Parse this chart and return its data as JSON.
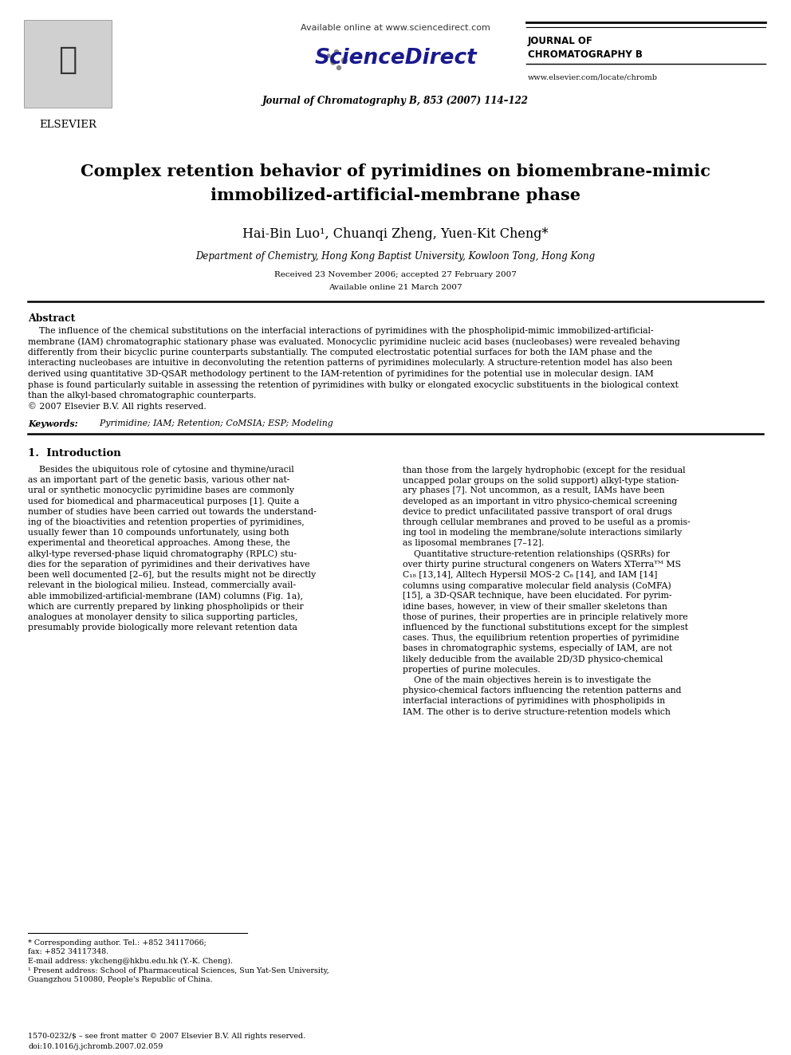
{
  "bg_color": "#ffffff",
  "header_available_online": "Available online at www.sciencedirect.com",
  "header_journal_info": "Journal of Chromatography B, 853 (2007) 114–122",
  "header_right_line1": "JOURNAL OF",
  "header_right_line2": "CHROMATOGRAPHY B",
  "header_url": "www.elsevier.com/locate/chromb",
  "elsevier_text": "ELSEVIER",
  "title_line1": "Complex retention behavior of pyrimidines on biomembrane-mimic",
  "title_line2": "immobilized-artificial-membrane phase",
  "authors_line": "Hai-Bin Luo¹, Chuanqi Zheng, Yuen-Kit Cheng*",
  "affiliation": "Department of Chemistry, Hong Kong Baptist University, Kowloon Tong, Hong Kong",
  "received": "Received 23 November 2006; accepted 27 February 2007",
  "available_online_paper": "Available online 21 March 2007",
  "abstract_title": "Abstract",
  "abstract_lines": [
    "    The influence of the chemical substitutions on the interfacial interactions of pyrimidines with the phospholipid-mimic immobilized-artificial-",
    "membrane (IAM) chromatographic stationary phase was evaluated. Monocyclic pyrimidine nucleic acid bases (nucleobases) were revealed behaving",
    "differently from their bicyclic purine counterparts substantially. The computed electrostatic potential surfaces for both the IAM phase and the",
    "interacting nucleobases are intuitive in deconvoluting the retention patterns of pyrimidines molecularly. A structure-retention model has also been",
    "derived using quantitative 3D-QSAR methodology pertinent to the IAM-retention of pyrimidines for the potential use in molecular design. IAM",
    "phase is found particularly suitable in assessing the retention of pyrimidines with bulky or elongated exocyclic substituents in the biological context",
    "than the alkyl-based chromatographic counterparts.",
    "© 2007 Elsevier B.V. All rights reserved."
  ],
  "keywords_label": "Keywords:",
  "keywords_text": "  Pyrimidine; IAM; Retention; CoMSIA; ESP; Modeling",
  "section1_title": "1.  Introduction",
  "col1_lines": [
    "    Besides the ubiquitous role of cytosine and thymine/uracil",
    "as an important part of the genetic basis, various other nat-",
    "ural or synthetic monocyclic pyrimidine bases are commonly",
    "used for biomedical and pharmaceutical purposes [1]. Quite a",
    "number of studies have been carried out towards the understand-",
    "ing of the bioactivities and retention properties of pyrimidines,",
    "usually fewer than 10 compounds unfortunately, using both",
    "experimental and theoretical approaches. Among these, the",
    "alkyl-type reversed-phase liquid chromatography (RPLC) stu-",
    "dies for the separation of pyrimidines and their derivatives have",
    "been well documented [2–6], but the results might not be directly",
    "relevant in the biological milieu. Instead, commercially avail-",
    "able immobilized-artificial-membrane (IAM) columns (Fig. 1a),",
    "which are currently prepared by linking phospholipids or their",
    "analogues at monolayer density to silica supporting particles,",
    "presumably provide biologically more relevant retention data"
  ],
  "col2_lines": [
    "than those from the largely hydrophobic (except for the residual",
    "uncapped polar groups on the solid support) alkyl-type station-",
    "ary phases [7]. Not uncommon, as a result, IAMs have been",
    "developed as an important in vitro physico-chemical screening",
    "device to predict unfacilitated passive transport of oral drugs",
    "through cellular membranes and proved to be useful as a promis-",
    "ing tool in modeling the membrane/solute interactions similarly",
    "as liposomal membranes [7–12].",
    "    Quantitative structure-retention relationships (QSRRs) for",
    "over thirty purine structural congeners on Waters XTerraᵀᴹ MS",
    "C₁₈ [13,14], Alltech Hypersil MOS-2 C₈ [14], and IAM [14]",
    "columns using comparative molecular field analysis (CoMFA)",
    "[15], a 3D-QSAR technique, have been elucidated. For pyrim-",
    "idine bases, however, in view of their smaller skeletons than",
    "those of purines, their properties are in principle relatively more",
    "influenced by the functional substitutions except for the simplest",
    "cases. Thus, the equilibrium retention properties of pyrimidine",
    "bases in chromatographic systems, especially of IAM, are not",
    "likely deducible from the available 2D/3D physico-chemical",
    "properties of purine molecules.",
    "    One of the main objectives herein is to investigate the",
    "physico-chemical factors influencing the retention patterns and",
    "interfacial interactions of pyrimidines with phospholipids in",
    "IAM. The other is to derive structure-retention models which"
  ],
  "footnotes": [
    "* Corresponding author. Tel.: +852 34117066;",
    "fax: +852 34117348.",
    "E-mail address: ykcheng@hkbu.edu.hk (Y.-K. Cheng).",
    "¹ Present address: School of Pharmaceutical Sciences, Sun Yat-Sen University,",
    "Guangzhou 510080, People's Republic of China."
  ],
  "bottom_line1": "1570-0232/$ – see front matter © 2007 Elsevier B.V. All rights reserved.",
  "bottom_line2": "doi:10.1016/j.jchromb.2007.02.059"
}
